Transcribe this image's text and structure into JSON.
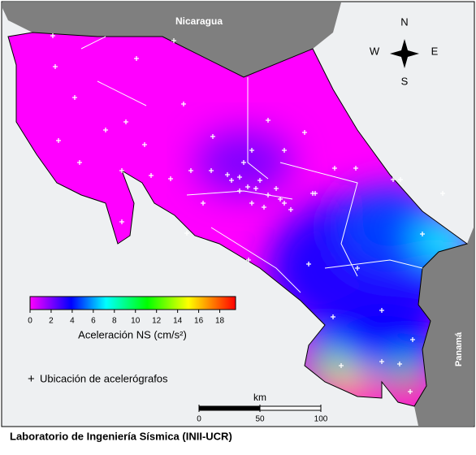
{
  "map": {
    "labels": {
      "nicaragua": "Nicaragua",
      "panama": "Panamá"
    },
    "compass": {
      "n": "N",
      "s": "S",
      "e": "E",
      "w": "W"
    },
    "colorbar": {
      "label": "Aceleración NS (cm/s²)",
      "lim": [
        0,
        19.5
      ],
      "ticks": [
        0,
        2,
        4,
        6,
        8,
        10,
        12,
        14,
        16,
        18
      ]
    },
    "legend": "Ubicación de acelerógrafos",
    "scale_bar": {
      "unit": "km",
      "lim": [
        0,
        100
      ],
      "ticks": [
        0,
        50,
        100
      ]
    },
    "footer": "Laboratorio de Ingeniería Sísmica (INII-UCR)"
  }
}
